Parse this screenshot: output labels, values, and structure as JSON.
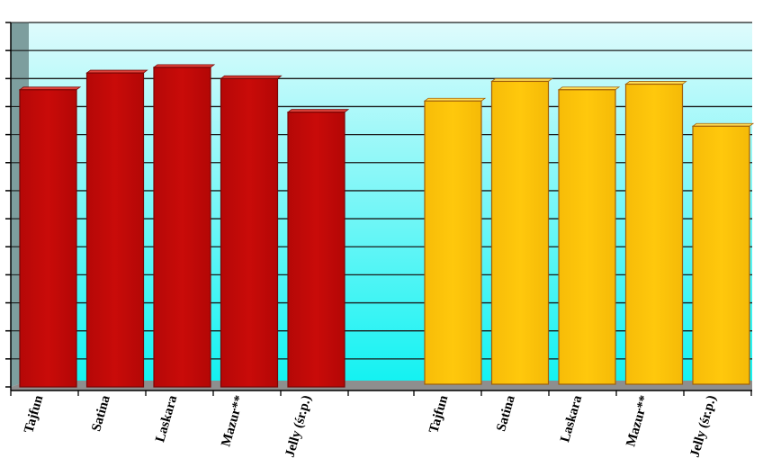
{
  "chart_data": {
    "type": "bar",
    "title": "",
    "xlabel": "",
    "ylabel": "",
    "ylim": [
      0,
      13
    ],
    "grid": true,
    "legend": "none",
    "groups": [
      {
        "categories": [
          "Tajfun",
          "Satina",
          "Laskara",
          "Mazur**",
          "Jelly (śr.p.)"
        ],
        "values": [
          10.6,
          11.2,
          11.4,
          11.0,
          9.8
        ],
        "color": "#C40A08"
      },
      {
        "categories": [
          "Tajfun",
          "Satina",
          "Laskara",
          "Mazur**",
          "Jelly (śr.p.)"
        ],
        "values": [
          10.2,
          10.9,
          10.6,
          10.8,
          9.3
        ],
        "color": "#FCC40A"
      }
    ]
  }
}
